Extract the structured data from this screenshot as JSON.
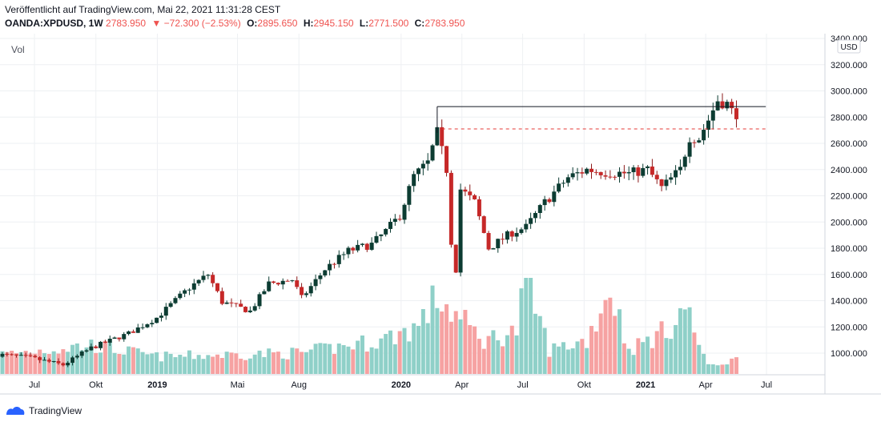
{
  "header": {
    "published": "Veröffentlicht auf TradingView.com, Mai 22, 2021 11:31:28 CEST",
    "symbol": "OANDA:XPDUSD, 1W",
    "last": "2783.950",
    "change_arrow": "▼",
    "change": "−72.300 (−2.53%)",
    "open_label": "O:",
    "open": "2895.650",
    "high_label": "H:",
    "high": "2945.150",
    "low_label": "L:",
    "low": "2771.500",
    "close_label": "C:",
    "close": "2783.950"
  },
  "footer": {
    "brand": "TradingView",
    "logo_icon": "tradingview-logo-icon"
  },
  "colors": {
    "up": "#26a69a",
    "up_body": "#0c3c32",
    "down": "#c62828",
    "vol_up": "#8fd0c8",
    "vol_down": "#f6a2a2",
    "grid": "#eef0f3"
  },
  "chart_data": {
    "type": "candlestick",
    "volume_label": "Vol",
    "currency_badge": "USD",
    "y_ticks": [
      "3400.000",
      "3200.000",
      "3000.000",
      "2800.000",
      "2600.000",
      "2400.000",
      "2200.000",
      "2000.000",
      "1800.000",
      "1600.000",
      "1400.000",
      "1200.000",
      "1000.000"
    ],
    "y_range": [
      880,
      3400
    ],
    "x_ticks": [
      {
        "label": "Jul",
        "date": "2018-07-01"
      },
      {
        "label": "Okt",
        "date": "2018-10-01"
      },
      {
        "label": "2019",
        "date": "2019-01-01"
      },
      {
        "label": "Mai",
        "date": "2019-05-01"
      },
      {
        "label": "Aug",
        "date": "2019-08-01"
      },
      {
        "label": "2020",
        "date": "2020-01-01"
      },
      {
        "label": "Apr",
        "date": "2020-04-01"
      },
      {
        "label": "Jul",
        "date": "2020-07-01"
      },
      {
        "label": "Okt",
        "date": "2020-10-01"
      },
      {
        "label": "2021",
        "date": "2021-01-01"
      },
      {
        "label": "Apr",
        "date": "2021-04-01"
      },
      {
        "label": "Jul",
        "date": "2021-07-01"
      }
    ],
    "resistance_line": {
      "value": 2880,
      "from": "2020-02-24",
      "to": "2021-06-30",
      "style": "solid"
    },
    "support_line": {
      "value": 2710,
      "from": "2020-03-02",
      "to": "2021-06-30",
      "style": "dashed"
    },
    "close_anchors": [
      {
        "date": "2018-05-07",
        "close": 990
      },
      {
        "date": "2018-06-25",
        "close": 965
      },
      {
        "date": "2018-08-13",
        "close": 910
      },
      {
        "date": "2018-09-24",
        "close": 1040
      },
      {
        "date": "2018-11-19",
        "close": 1150
      },
      {
        "date": "2018-12-31",
        "close": 1270
      },
      {
        "date": "2019-02-18",
        "close": 1500
      },
      {
        "date": "2019-03-18",
        "close": 1600
      },
      {
        "date": "2019-04-08",
        "close": 1390
      },
      {
        "date": "2019-05-20",
        "close": 1320
      },
      {
        "date": "2019-06-17",
        "close": 1530
      },
      {
        "date": "2019-07-22",
        "close": 1560
      },
      {
        "date": "2019-08-05",
        "close": 1420
      },
      {
        "date": "2019-09-09",
        "close": 1640
      },
      {
        "date": "2019-10-14",
        "close": 1780
      },
      {
        "date": "2019-11-18",
        "close": 1830
      },
      {
        "date": "2019-12-09",
        "close": 1930
      },
      {
        "date": "2019-12-30",
        "close": 2050
      },
      {
        "date": "2020-01-20",
        "close": 2350
      },
      {
        "date": "2020-02-10",
        "close": 2450
      },
      {
        "date": "2020-02-24",
        "close": 2680
      },
      {
        "date": "2020-03-09",
        "close": 2400
      },
      {
        "date": "2020-03-16",
        "close": 1850
      },
      {
        "date": "2020-03-23",
        "close": 1640
      },
      {
        "date": "2020-03-30",
        "close": 2250
      },
      {
        "date": "2020-04-20",
        "close": 2150
      },
      {
        "date": "2020-05-11",
        "close": 1800
      },
      {
        "date": "2020-06-15",
        "close": 1920
      },
      {
        "date": "2020-07-06",
        "close": 1960
      },
      {
        "date": "2020-08-03",
        "close": 2150
      },
      {
        "date": "2020-09-07",
        "close": 2340
      },
      {
        "date": "2020-10-05",
        "close": 2400
      },
      {
        "date": "2020-11-02",
        "close": 2380
      },
      {
        "date": "2020-12-07",
        "close": 2370
      },
      {
        "date": "2021-01-04",
        "close": 2400
      },
      {
        "date": "2021-01-25",
        "close": 2260
      },
      {
        "date": "2021-02-22",
        "close": 2400
      },
      {
        "date": "2021-03-08",
        "close": 2650
      },
      {
        "date": "2021-03-22",
        "close": 2640
      },
      {
        "date": "2021-04-05",
        "close": 2780
      },
      {
        "date": "2021-04-19",
        "close": 2930
      },
      {
        "date": "2021-05-03",
        "close": 2900
      },
      {
        "date": "2021-05-17",
        "close": 2784
      }
    ],
    "volume_anchors": [
      {
        "date": "2018-05-07",
        "volume": 20
      },
      {
        "date": "2018-09-24",
        "volume": 30
      },
      {
        "date": "2018-12-31",
        "volume": 18
      },
      {
        "date": "2019-08-05",
        "volume": 22
      },
      {
        "date": "2019-12-02",
        "volume": 35
      },
      {
        "date": "2020-01-27",
        "volume": 50
      },
      {
        "date": "2020-02-24",
        "volume": 80
      },
      {
        "date": "2020-03-16",
        "volume": 65
      },
      {
        "date": "2020-05-04",
        "volume": 35
      },
      {
        "date": "2020-06-22",
        "volume": 45
      },
      {
        "date": "2020-07-06",
        "volume": 100
      },
      {
        "date": "2020-08-10",
        "volume": 25
      },
      {
        "date": "2020-10-05",
        "volume": 35
      },
      {
        "date": "2020-11-09",
        "volume": 90
      },
      {
        "date": "2020-12-07",
        "volume": 25
      },
      {
        "date": "2021-02-01",
        "volume": 45
      },
      {
        "date": "2021-03-01",
        "volume": 70
      },
      {
        "date": "2021-04-05",
        "volume": 8
      },
      {
        "date": "2021-05-17",
        "volume": 15
      }
    ]
  }
}
